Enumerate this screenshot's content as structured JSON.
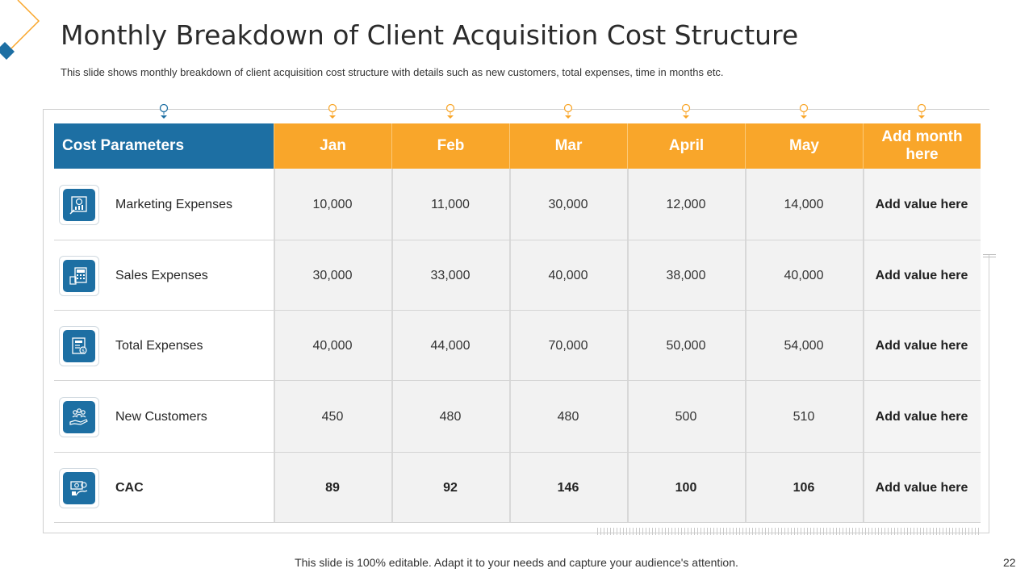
{
  "title": "Monthly Breakdown of Client Acquisition Cost Structure",
  "subtitle": "This slide shows monthly breakdown of client acquisition cost structure with details such as new customers, total expenses, time in months etc.",
  "table": {
    "header_param": "Cost Parameters",
    "months": [
      "Jan",
      "Feb",
      "Mar",
      "April",
      "May",
      "Add month here"
    ],
    "rows": [
      {
        "label": "Marketing Expenses",
        "icon": "marketing-chart-icon",
        "values": [
          "10,000",
          "11,000",
          "30,000",
          "12,000",
          "14,000",
          "Add value here"
        ],
        "bold": false
      },
      {
        "label": "Sales Expenses",
        "icon": "sales-calculator-icon",
        "values": [
          "30,000",
          "33,000",
          "40,000",
          "38,000",
          "40,000",
          "Add value here"
        ],
        "bold": false
      },
      {
        "label": "Total Expenses",
        "icon": "expense-document-icon",
        "values": [
          "40,000",
          "44,000",
          "70,000",
          "50,000",
          "54,000",
          "Add value here"
        ],
        "bold": false
      },
      {
        "label": "New Customers",
        "icon": "customers-hand-icon",
        "values": [
          "450",
          "480",
          "480",
          "500",
          "510",
          "Add value here"
        ],
        "bold": false
      },
      {
        "label": "CAC",
        "icon": "cac-money-icon",
        "values": [
          "89",
          "92",
          "146",
          "100",
          "106",
          "Add value here"
        ],
        "bold": true
      }
    ]
  },
  "footer": "This slide is 100% editable. Adapt it to your needs and capture your audience's attention.",
  "page_number": "22",
  "colors": {
    "blue": "#1d6fa3",
    "orange": "#f9a62a"
  }
}
